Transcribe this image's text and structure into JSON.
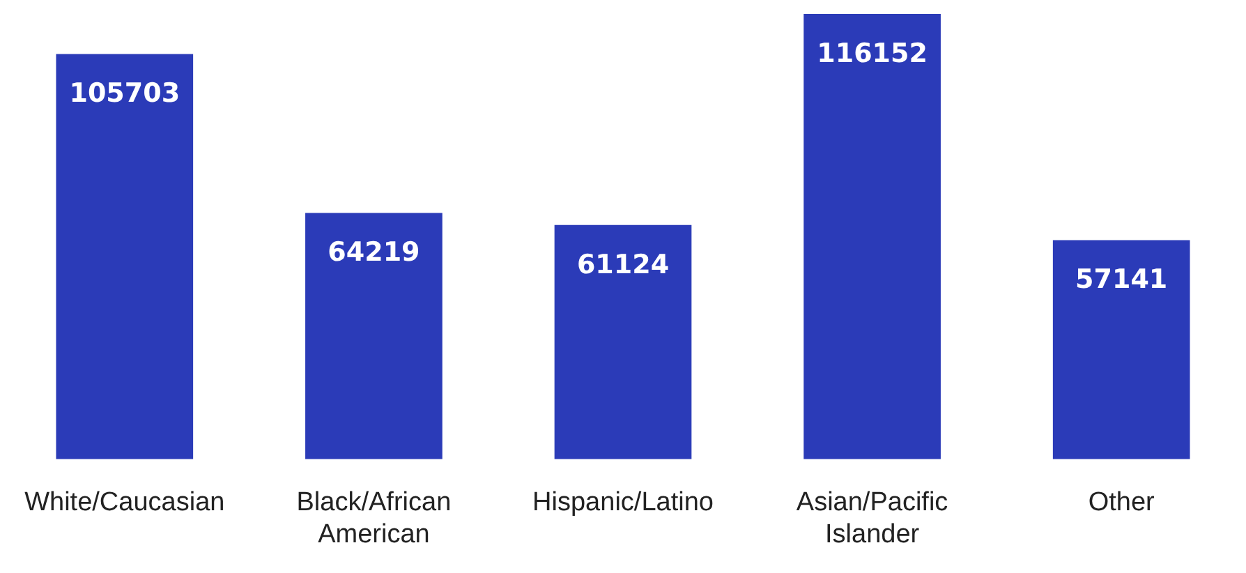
{
  "chart_data": {
    "type": "bar",
    "categories": [
      "White/Caucasian",
      "Black/African American",
      "Hispanic/Latino",
      "Asian/Pacific Islander",
      "Other"
    ],
    "values": [
      105703,
      64219,
      61124,
      116152,
      57141
    ],
    "color": "#2b3bb8",
    "data_labels": true
  }
}
